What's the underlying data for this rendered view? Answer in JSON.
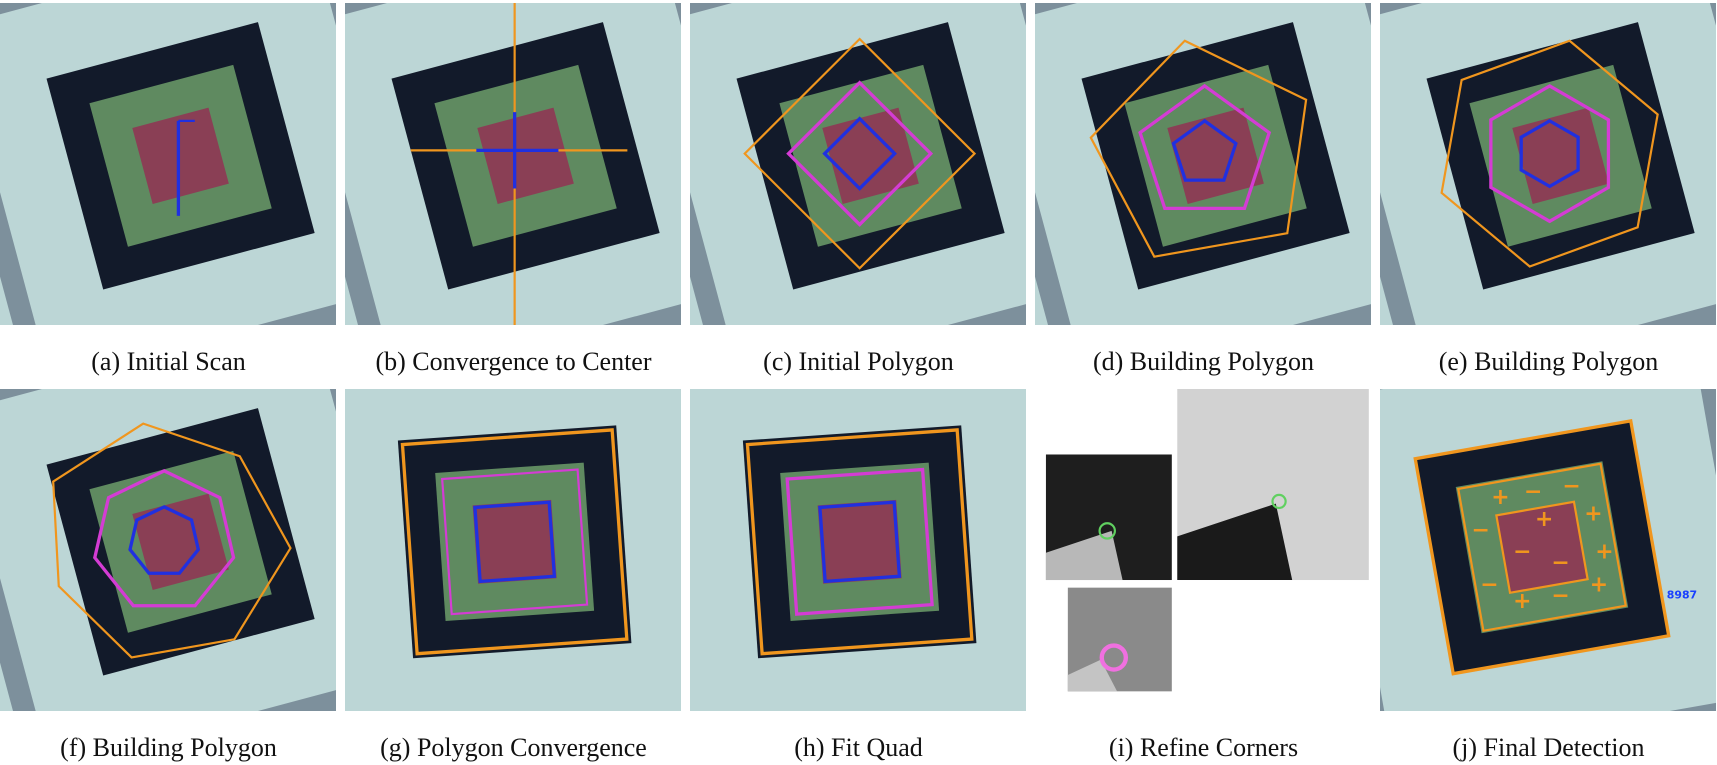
{
  "panels": [
    {
      "caption": "(a) Initial Scan"
    },
    {
      "caption": "(b) Convergence to Center"
    },
    {
      "caption": "(c) Initial Polygon"
    },
    {
      "caption": "(d) Building Polygon"
    },
    {
      "caption": "(e) Building Polygon"
    },
    {
      "caption": "(f) Building Polygon"
    },
    {
      "caption": "(g) Polygon Convergence"
    },
    {
      "caption": "(h) Fit Quad"
    },
    {
      "caption": "(i) Refine Corners"
    },
    {
      "caption": "(j) Final Detection",
      "detection_id": "8987"
    }
  ]
}
